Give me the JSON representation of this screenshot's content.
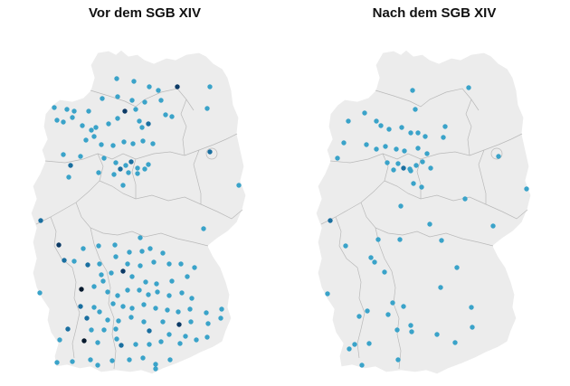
{
  "titles": {
    "left": "Vor dem SGB XIV",
    "right": "Nach dem SGB XIV"
  },
  "colors": {
    "land": "#ececec",
    "border": "#b9b9b9",
    "dot_light": "#3aa3c9",
    "dot_mid": "#1a6fa0",
    "dot_dark": "#0c3a66",
    "dot_black": "#061a2e"
  },
  "maps": [
    {
      "id": "left",
      "points": [
        [
          129,
          87,
          1
        ],
        [
          148,
          90,
          1
        ],
        [
          165,
          96,
          1
        ],
        [
          175,
          100,
          1
        ],
        [
          196,
          96,
          3
        ],
        [
          232,
          96,
          1
        ],
        [
          113,
          109,
          1
        ],
        [
          130,
          107,
          1
        ],
        [
          146,
          111,
          1
        ],
        [
          160,
          113,
          1
        ],
        [
          178,
          111,
          1
        ],
        [
          138,
          123,
          3
        ],
        [
          150,
          121,
          1
        ],
        [
          183,
          127,
          1
        ],
        [
          190,
          129,
          1
        ],
        [
          229,
          120,
          1
        ],
        [
          60,
          119,
          1
        ],
        [
          74,
          121,
          1
        ],
        [
          82,
          123,
          1
        ],
        [
          98,
          123,
          1
        ],
        [
          63,
          133,
          1
        ],
        [
          70,
          135,
          1
        ],
        [
          80,
          130,
          1
        ],
        [
          91,
          139,
          1
        ],
        [
          101,
          144,
          1
        ],
        [
          106,
          141,
          1
        ],
        [
          120,
          137,
          1
        ],
        [
          130,
          131,
          1
        ],
        [
          154,
          134,
          1
        ],
        [
          157,
          141,
          1
        ],
        [
          164,
          137,
          2
        ],
        [
          95,
          155,
          1
        ],
        [
          104,
          151,
          1
        ],
        [
          112,
          160,
          1
        ],
        [
          125,
          161,
          1
        ],
        [
          137,
          157,
          1
        ],
        [
          147,
          159,
          1
        ],
        [
          158,
          156,
          1
        ],
        [
          169,
          159,
          1
        ],
        [
          232,
          168,
          2
        ],
        [
          70,
          171,
          1
        ],
        [
          89,
          173,
          1
        ],
        [
          115,
          175,
          1
        ],
        [
          128,
          180,
          1
        ],
        [
          139,
          183,
          1
        ],
        [
          145,
          179,
          2
        ],
        [
          152,
          186,
          1
        ],
        [
          160,
          187,
          1
        ],
        [
          164,
          182,
          1
        ],
        [
          78,
          183,
          2
        ],
        [
          76,
          196,
          1
        ],
        [
          109,
          191,
          1
        ],
        [
          126,
          193,
          1
        ],
        [
          133,
          187,
          2
        ],
        [
          142,
          191,
          1
        ],
        [
          152,
          192,
          1
        ],
        [
          136,
          205,
          1
        ],
        [
          264,
          205,
          1
        ],
        [
          45,
          244,
          2
        ],
        [
          155,
          263,
          1
        ],
        [
          225,
          253,
          1
        ],
        [
          65,
          271,
          3
        ],
        [
          92,
          275,
          1
        ],
        [
          109,
          272,
          1
        ],
        [
          127,
          271,
          1
        ],
        [
          143,
          279,
          1
        ],
        [
          157,
          278,
          1
        ],
        [
          166,
          275,
          1
        ],
        [
          180,
          280,
          1
        ],
        [
          71,
          288,
          2
        ],
        [
          82,
          289,
          1
        ],
        [
          97,
          293,
          2
        ],
        [
          110,
          292,
          1
        ],
        [
          128,
          284,
          1
        ],
        [
          141,
          292,
          1
        ],
        [
          155,
          294,
          1
        ],
        [
          170,
          290,
          1
        ],
        [
          187,
          292,
          1
        ],
        [
          200,
          292,
          1
        ],
        [
          112,
          304,
          1
        ],
        [
          123,
          302,
          1
        ],
        [
          136,
          300,
          3
        ],
        [
          146,
          306,
          1
        ],
        [
          161,
          312,
          1
        ],
        [
          173,
          314,
          1
        ],
        [
          190,
          311,
          1
        ],
        [
          207,
          306,
          1
        ],
        [
          215,
          296,
          1
        ],
        [
          44,
          324,
          1
        ],
        [
          90,
          320,
          4
        ],
        [
          104,
          317,
          1
        ],
        [
          114,
          311,
          1
        ],
        [
          119,
          323,
          1
        ],
        [
          130,
          327,
          1
        ],
        [
          141,
          321,
          1
        ],
        [
          154,
          321,
          1
        ],
        [
          164,
          326,
          1
        ],
        [
          174,
          323,
          1
        ],
        [
          187,
          327,
          1
        ],
        [
          201,
          324,
          1
        ],
        [
          212,
          330,
          1
        ],
        [
          89,
          339,
          2
        ],
        [
          104,
          340,
          1
        ],
        [
          110,
          345,
          1
        ],
        [
          125,
          336,
          1
        ],
        [
          136,
          339,
          1
        ],
        [
          146,
          341,
          1
        ],
        [
          159,
          337,
          1
        ],
        [
          172,
          341,
          1
        ],
        [
          185,
          343,
          1
        ],
        [
          197,
          345,
          1
        ],
        [
          210,
          342,
          1
        ],
        [
          228,
          346,
          1
        ],
        [
          244,
          352,
          1
        ],
        [
          96,
          352,
          2
        ],
        [
          119,
          354,
          1
        ],
        [
          131,
          355,
          1
        ],
        [
          145,
          351,
          1
        ],
        [
          159,
          356,
          1
        ],
        [
          180,
          356,
          1
        ],
        [
          198,
          359,
          3
        ],
        [
          211,
          356,
          1
        ],
        [
          230,
          358,
          1
        ],
        [
          75,
          364,
          2
        ],
        [
          101,
          365,
          1
        ],
        [
          115,
          365,
          1
        ],
        [
          128,
          364,
          1
        ],
        [
          165,
          366,
          2
        ],
        [
          187,
          370,
          1
        ],
        [
          205,
          372,
          1
        ],
        [
          217,
          376,
          1
        ],
        [
          229,
          373,
          1
        ],
        [
          66,
          376,
          1
        ],
        [
          93,
          377,
          4
        ],
        [
          108,
          379,
          1
        ],
        [
          129,
          375,
          1
        ],
        [
          150,
          381,
          1
        ],
        [
          165,
          381,
          1
        ],
        [
          178,
          378,
          1
        ],
        [
          199,
          380,
          1
        ],
        [
          63,
          401,
          1
        ],
        [
          80,
          400,
          1
        ],
        [
          100,
          398,
          1
        ],
        [
          108,
          404,
          1
        ],
        [
          124,
          399,
          1
        ],
        [
          143,
          398,
          1
        ],
        [
          158,
          396,
          1
        ],
        [
          172,
          403,
          1
        ],
        [
          188,
          398,
          1
        ],
        [
          134,
          382,
          2
        ],
        [
          172,
          408,
          1
        ],
        [
          245,
          342,
          1
        ]
      ]
    },
    {
      "id": "right",
      "points": [
        [
          518,
          97,
          1
        ],
        [
          456,
          100,
          1
        ],
        [
          459,
          121,
          1
        ],
        [
          403,
          125,
          1
        ],
        [
          416,
          134,
          1
        ],
        [
          385,
          134,
          1
        ],
        [
          421,
          139,
          1
        ],
        [
          430,
          143,
          1
        ],
        [
          444,
          141,
          1
        ],
        [
          454,
          147,
          1
        ],
        [
          462,
          147,
          1
        ],
        [
          470,
          151,
          1
        ],
        [
          490,
          152,
          1
        ],
        [
          492,
          140,
          1
        ],
        [
          380,
          158,
          1
        ],
        [
          405,
          160,
          1
        ],
        [
          416,
          165,
          1
        ],
        [
          426,
          162,
          1
        ],
        [
          438,
          165,
          1
        ],
        [
          447,
          167,
          1
        ],
        [
          462,
          164,
          1
        ],
        [
          472,
          170,
          1
        ],
        [
          551,
          173,
          1
        ],
        [
          373,
          175,
          1
        ],
        [
          428,
          180,
          1
        ],
        [
          440,
          181,
          1
        ],
        [
          446,
          186,
          2
        ],
        [
          453,
          187,
          1
        ],
        [
          460,
          183,
          1
        ],
        [
          467,
          179,
          1
        ],
        [
          476,
          186,
          1
        ],
        [
          454,
          189,
          1
        ],
        [
          435,
          188,
          1
        ],
        [
          582,
          209,
          1
        ],
        [
          457,
          203,
          1
        ],
        [
          466,
          207,
          1
        ],
        [
          514,
          220,
          1
        ],
        [
          443,
          228,
          1
        ],
        [
          365,
          244,
          2
        ],
        [
          475,
          248,
          1
        ],
        [
          545,
          250,
          1
        ],
        [
          382,
          272,
          1
        ],
        [
          418,
          265,
          1
        ],
        [
          442,
          265,
          1
        ],
        [
          488,
          266,
          1
        ],
        [
          410,
          285,
          1
        ],
        [
          414,
          290,
          1
        ],
        [
          505,
          296,
          1
        ],
        [
          425,
          301,
          1
        ],
        [
          487,
          318,
          1
        ],
        [
          362,
          325,
          1
        ],
        [
          434,
          335,
          1
        ],
        [
          446,
          339,
          1
        ],
        [
          406,
          344,
          1
        ],
        [
          429,
          348,
          1
        ],
        [
          521,
          340,
          1
        ],
        [
          397,
          350,
          1
        ],
        [
          439,
          365,
          1
        ],
        [
          454,
          360,
          1
        ],
        [
          455,
          367,
          1
        ],
        [
          483,
          370,
          1
        ],
        [
          522,
          362,
          1
        ],
        [
          503,
          379,
          1
        ],
        [
          392,
          381,
          1
        ],
        [
          408,
          380,
          1
        ],
        [
          386,
          386,
          1
        ],
        [
          440,
          398,
          1
        ],
        [
          400,
          404,
          1
        ]
      ]
    }
  ]
}
